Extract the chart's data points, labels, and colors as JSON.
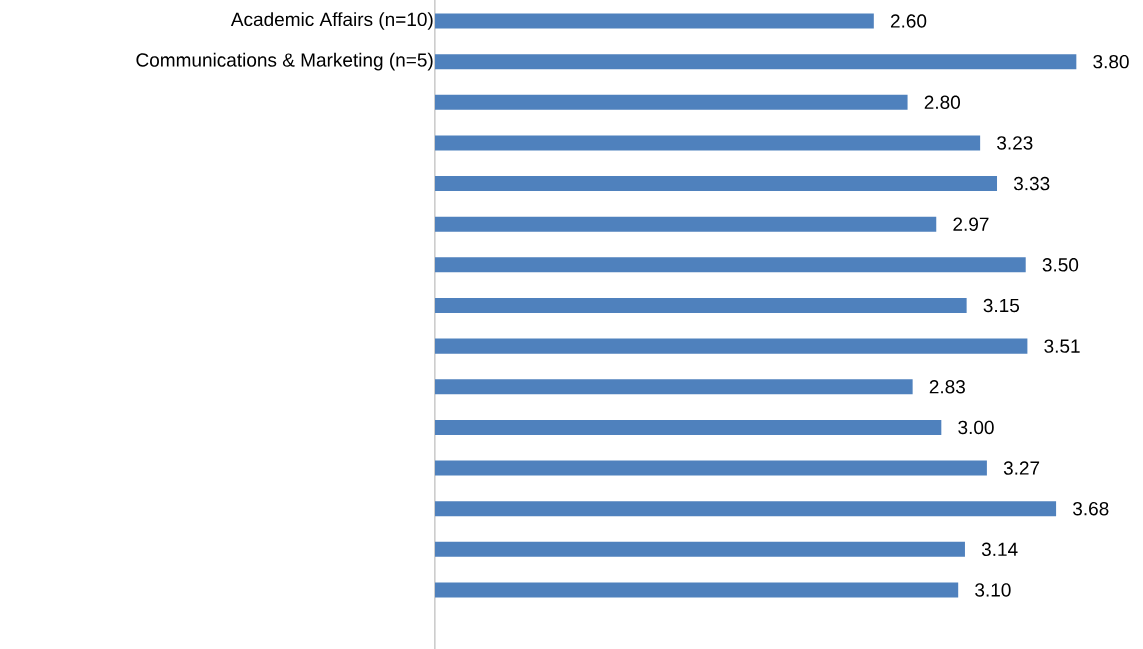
{
  "chart_data": {
    "type": "bar",
    "orientation": "horizontal",
    "categories": [
      "Academic Affairs (n=10)",
      "Communications & Marketing  (n=5)",
      null,
      null,
      null,
      null,
      null,
      null,
      null,
      null,
      null,
      null,
      null,
      null,
      null
    ],
    "values": [
      2.6,
      3.8,
      2.8,
      3.23,
      3.33,
      2.97,
      3.5,
      3.15,
      3.51,
      2.83,
      3.0,
      3.27,
      3.68,
      3.14,
      3.1
    ],
    "value_labels": [
      "2.60",
      "3.80",
      "2.80",
      "3.23",
      "3.33",
      "2.97",
      "3.50",
      "3.15",
      "3.51",
      "2.83",
      "3.00",
      "3.27",
      "3.68",
      "3.14",
      "3.10"
    ],
    "color": "#4f81bd"
  }
}
